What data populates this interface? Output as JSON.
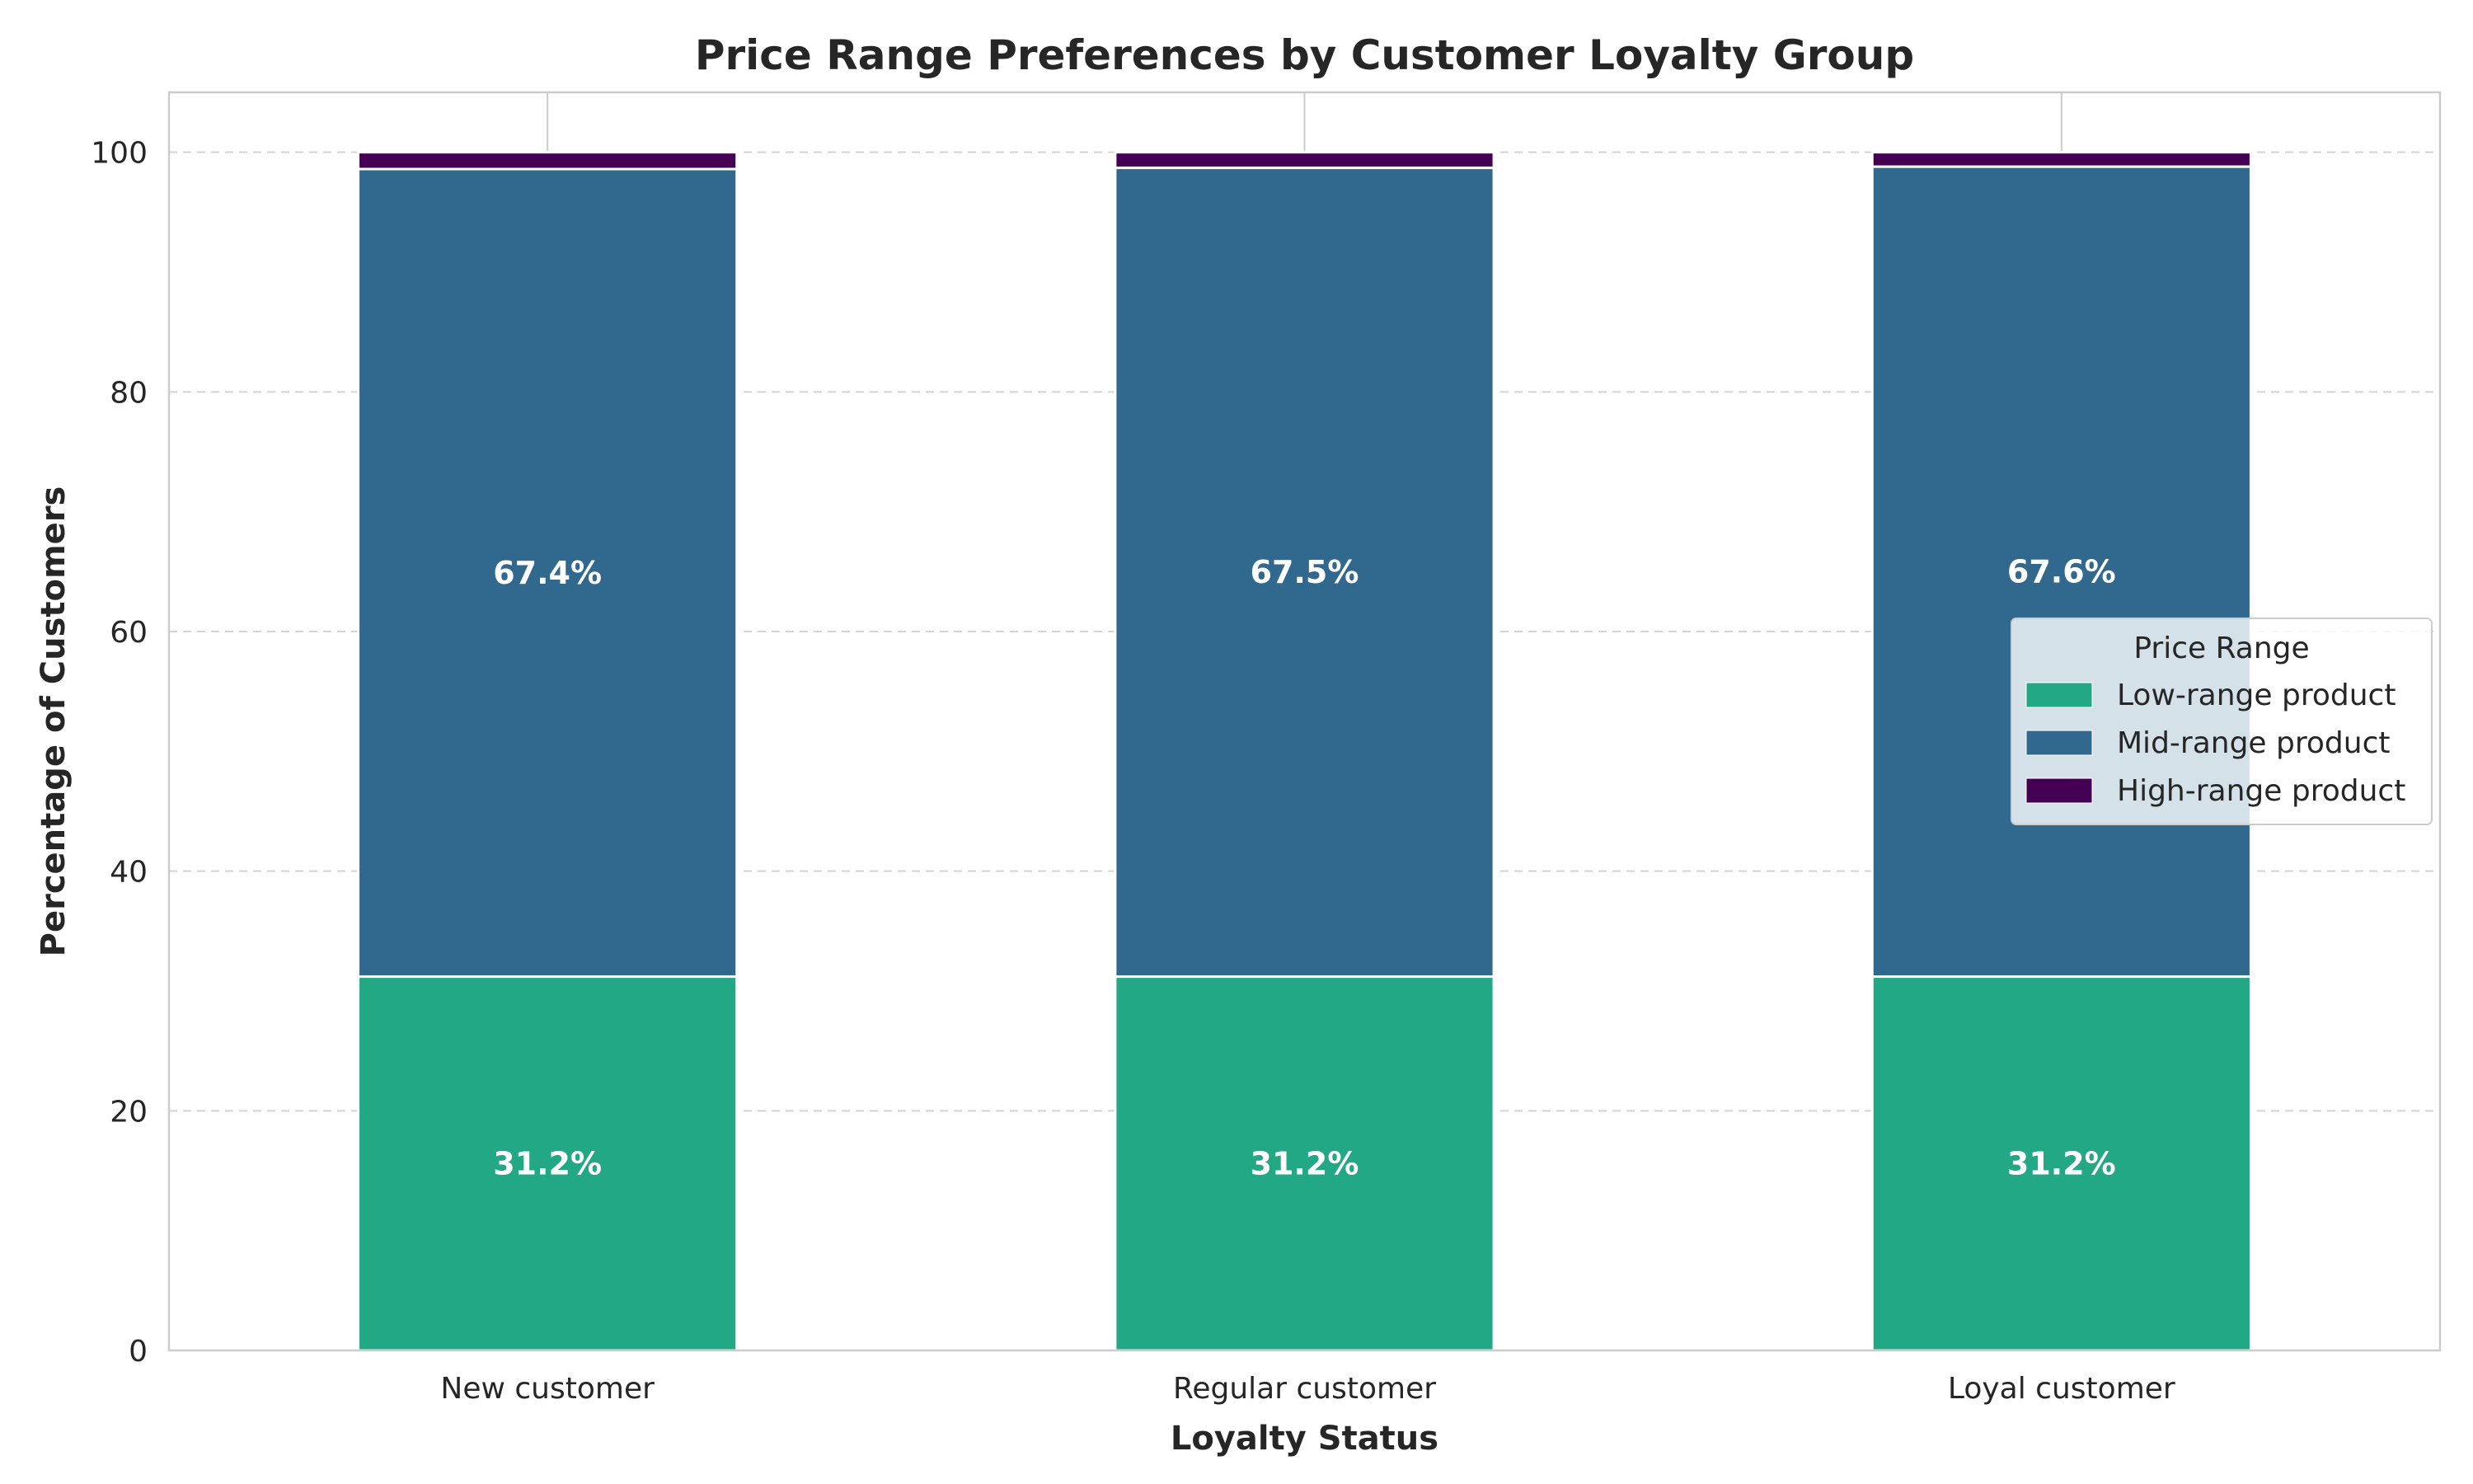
{
  "chart_data": {
    "type": "bar",
    "stacked": true,
    "title": "Price Range Preferences by Customer Loyalty Group",
    "xlabel": "Loyalty Status",
    "ylabel": "Percentage of Customers",
    "categories": [
      "New customer",
      "Regular customer",
      "Loyal customer"
    ],
    "ylim": [
      0,
      105
    ],
    "yticks": [
      0,
      20,
      40,
      60,
      80,
      100
    ],
    "grid": "y",
    "legend": {
      "title": "Price Range",
      "placement": "center-right"
    },
    "series": [
      {
        "name": "Low-range product",
        "values": [
          31.2,
          31.2,
          31.2
        ],
        "labels": [
          "31.2%",
          "31.2%",
          "31.2%"
        ],
        "color": "#22a884"
      },
      {
        "name": "Mid-range product",
        "values": [
          67.4,
          67.5,
          67.6
        ],
        "labels": [
          "67.4%",
          "67.5%",
          "67.6%"
        ],
        "color": "#31688e"
      },
      {
        "name": "High-range product",
        "values": [
          1.4,
          1.3,
          1.2
        ],
        "labels": [
          "",
          "",
          ""
        ],
        "color": "#440154"
      }
    ]
  }
}
